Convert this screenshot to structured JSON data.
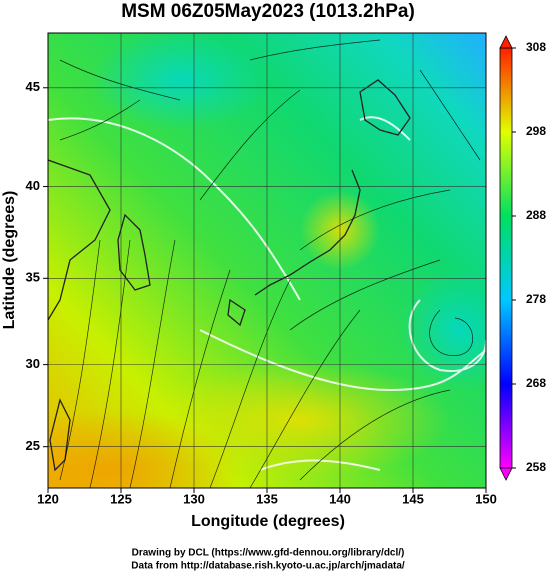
{
  "chart_data": {
    "type": "map",
    "title": "MSM 06Z05May2023 (1013.2hPa)",
    "xlabel": "Longitude (degrees)",
    "ylabel": "Latitude  (degrees)",
    "xlim": [
      120,
      150
    ],
    "xticks": [
      120,
      125,
      130,
      135,
      140,
      145,
      150
    ],
    "ylim": [
      22.4,
      47.6
    ],
    "yticks": [
      25,
      30,
      35,
      40,
      45
    ],
    "projection": "mercator",
    "grid": true,
    "colorbar": {
      "lim": [
        258,
        308
      ],
      "ticks": [
        258,
        268,
        278,
        288,
        298,
        308
      ],
      "colors": [
        "#ff00ff",
        "#0000ff",
        "#00c8ff",
        "#00e060",
        "#e0ff00",
        "#ff2000"
      ]
    },
    "footer": [
      "Drawing by DCL (https://www.gfd-dennou.org/library/dcl/)",
      "Data from http://database.rish.kyoto-u.ac.jp/arch/jmadata/"
    ]
  }
}
